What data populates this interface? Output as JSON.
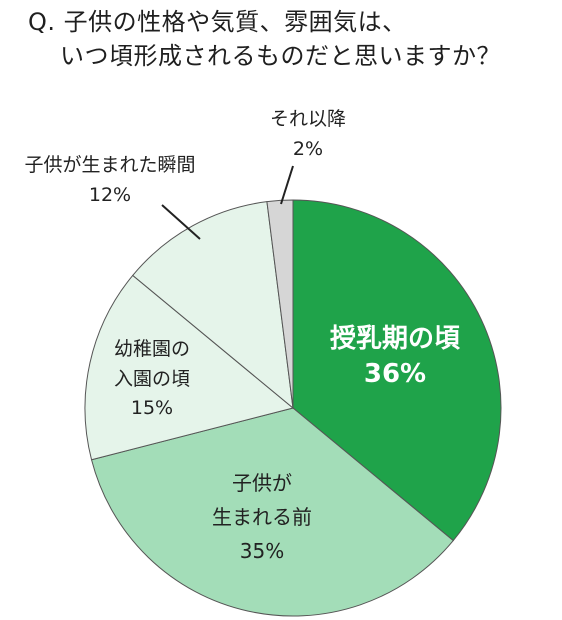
{
  "title_lines": [
    "Q. 子供の性格や気質、雰囲気は、",
    "いつ頃形成されるものだと思いますか？"
  ],
  "chart_data": {
    "type": "pie",
    "title": "Q. 子供の性格や気質、雰囲気は、いつ頃形成されるものだと思いますか？",
    "start": "12 o'clock, clockwise",
    "slices": [
      {
        "label_lines": [
          "授乳期の頃"
        ],
        "value": 36,
        "value_text": "36%",
        "color": "#1fa34a",
        "text_color": "#ffffff"
      },
      {
        "label_lines": [
          "子供が",
          "生まれる前"
        ],
        "value": 35,
        "value_text": "35%",
        "color": "#a3ddb8",
        "text_color": "#222222"
      },
      {
        "label_lines": [
          "幼稚園の",
          "入園の頃"
        ],
        "value": 15,
        "value_text": "15%",
        "color": "#e5f4ea",
        "text_color": "#222222"
      },
      {
        "label_lines": [
          "子供が生まれた瞬間"
        ],
        "value": 12,
        "value_text": "12%",
        "color": "#e5f4ea",
        "text_color": "#222222"
      },
      {
        "label_lines": [
          "それ以降"
        ],
        "value": 2,
        "value_text": "2%",
        "color": "#d6d6d6",
        "text_color": "#222222"
      }
    ]
  }
}
